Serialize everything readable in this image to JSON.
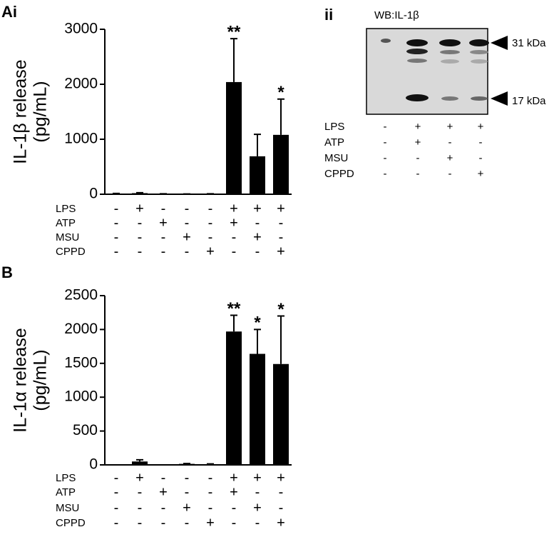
{
  "chart_data": [
    {
      "type": "bar",
      "panel": "Ai",
      "ylabel": [
        "IL-1β release",
        "(pg/mL)"
      ],
      "categories": [
        null,
        null,
        null,
        null,
        null,
        null,
        null,
        null
      ],
      "series": [
        {
          "color": "#000000",
          "values": [
            10,
            20,
            5,
            3,
            5,
            2040,
            690,
            1080
          ],
          "errors": [
            5,
            8,
            3,
            2,
            3,
            790,
            400,
            650
          ]
        }
      ],
      "significance": [
        null,
        null,
        null,
        null,
        null,
        "**",
        null,
        "*"
      ],
      "ylim": [
        0,
        3000
      ],
      "yticks": [
        0,
        1000,
        2000,
        3000
      ],
      "conditions": [
        {
          "name": "LPS",
          "values": [
            "-",
            "+",
            "-",
            "-",
            "-",
            "+",
            "+",
            "+"
          ]
        },
        {
          "name": "ATP",
          "values": [
            "-",
            "-",
            "+",
            "-",
            "-",
            "+",
            "-",
            "-"
          ]
        },
        {
          "name": "MSU",
          "values": [
            "-",
            "-",
            "-",
            "+",
            "-",
            "-",
            "+",
            "-"
          ]
        },
        {
          "name": "CPPD",
          "values": [
            "-",
            "-",
            "-",
            "-",
            "+",
            "-",
            "-",
            "+"
          ]
        }
      ]
    },
    {
      "type": "bar",
      "panel": "B",
      "ylabel": [
        "IL-1α release",
        "(pg/mL)"
      ],
      "categories": [
        null,
        null,
        null,
        null,
        null,
        null,
        null,
        null
      ],
      "series": [
        {
          "color": "#000000",
          "values": [
            0,
            50,
            0,
            15,
            10,
            1970,
            1640,
            1490
          ],
          "errors": [
            0,
            25,
            0,
            5,
            5,
            240,
            360,
            710
          ]
        }
      ],
      "significance": [
        null,
        null,
        null,
        null,
        null,
        "**",
        "*",
        "*"
      ],
      "ylim": [
        0,
        2500
      ],
      "yticks": [
        0,
        500,
        1000,
        1500,
        2000,
        2500
      ],
      "conditions": [
        {
          "name": "LPS",
          "values": [
            "-",
            "+",
            "-",
            "-",
            "-",
            "+",
            "+",
            "+"
          ]
        },
        {
          "name": "ATP",
          "values": [
            "-",
            "-",
            "+",
            "-",
            "-",
            "+",
            "-",
            "-"
          ]
        },
        {
          "name": "MSU",
          "values": [
            "-",
            "-",
            "-",
            "+",
            "-",
            "-",
            "+",
            "-"
          ]
        },
        {
          "name": "CPPD",
          "values": [
            "-",
            "-",
            "-",
            "-",
            "+",
            "-",
            "-",
            "+"
          ]
        }
      ]
    }
  ],
  "blot": {
    "panel": "ii",
    "title": "WB:IL-1β",
    "markers": [
      "31 kDa",
      "17 kDa"
    ],
    "conditions": [
      {
        "name": "LPS",
        "values": [
          "-",
          "+",
          "+",
          "+"
        ]
      },
      {
        "name": "ATP",
        "values": [
          "-",
          "+",
          "-",
          "-"
        ]
      },
      {
        "name": "MSU",
        "values": [
          "-",
          "-",
          "+",
          "-"
        ]
      },
      {
        "name": "CPPD",
        "values": [
          "-",
          "-",
          "-",
          "+"
        ]
      }
    ]
  }
}
